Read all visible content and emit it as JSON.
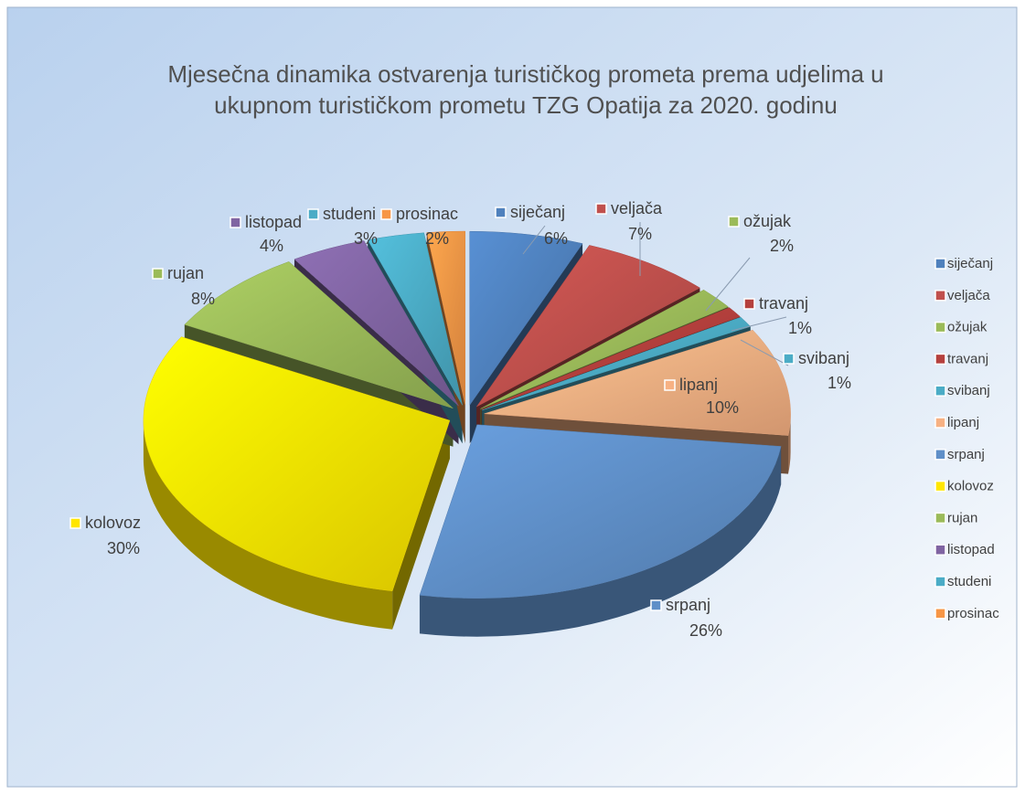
{
  "chart_data": {
    "type": "pie",
    "title": [
      "Mjesečna dinamika ostvarenja turističkog prometa prema udjelima u",
      "ukupnom turističkom prometu TZG Opatija za 2020. godinu"
    ],
    "categories": [
      "siječanj",
      "veljača",
      "ožujak",
      "travanj",
      "svibanj",
      "lipanj",
      "srpanj",
      "kolovoz",
      "rujan",
      "listopad",
      "studeni",
      "prosinac"
    ],
    "values": [
      6,
      7,
      2,
      1,
      1,
      10,
      26,
      30,
      8,
      4,
      3,
      2
    ],
    "value_labels": [
      "6%",
      "7%",
      "2%",
      "1%",
      "1%",
      "10%",
      "26%",
      "30%",
      "8%",
      "4%",
      "3%",
      "2%"
    ],
    "colors": [
      "#4f81bd",
      "#c0504d",
      "#9bbb59",
      "#b5403d",
      "#4bacc6",
      "#f7b183",
      "#5f8fc8",
      "#ffe600",
      "#9bbb59",
      "#8064a2",
      "#4bacc6",
      "#f79646"
    ],
    "legend": "right"
  }
}
